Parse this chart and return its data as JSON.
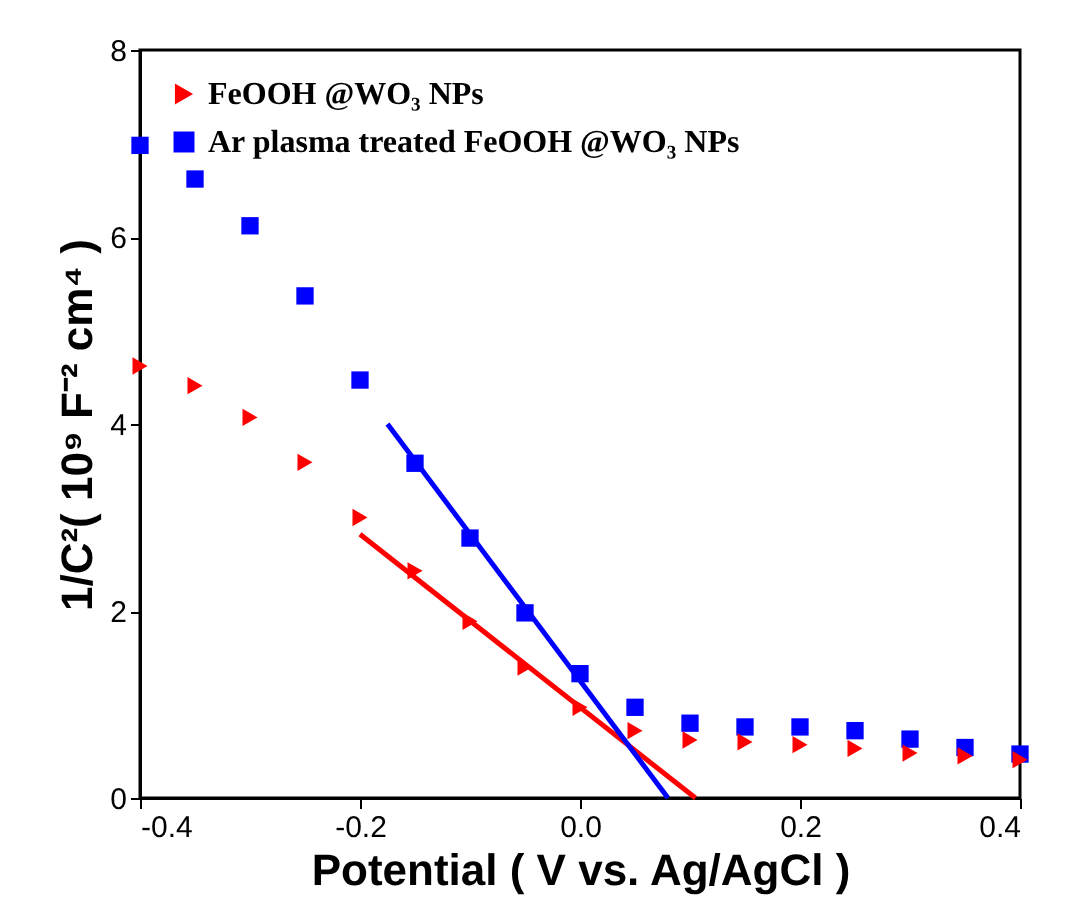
{
  "chart_data": {
    "type": "scatter",
    "xlabel": "Potential ( V vs. Ag/AgCl )",
    "ylabel": "1/C²( 10⁹ F⁻² cm⁴ )",
    "x": [
      -0.4,
      -0.35,
      -0.3,
      -0.25,
      -0.2,
      -0.15,
      -0.1,
      -0.05,
      0.0,
      0.05,
      0.1,
      0.15,
      0.2,
      0.25,
      0.3,
      0.35,
      0.4
    ],
    "series": [
      {
        "name": "FeOOH @WO₃ NPs",
        "marker": "triangle",
        "color": "#ff0000",
        "values": [
          4.62,
          4.41,
          4.07,
          3.59,
          3.0,
          2.43,
          1.89,
          1.4,
          0.97,
          0.72,
          0.62,
          0.6,
          0.57,
          0.53,
          0.48,
          0.45,
          0.41
        ]
      },
      {
        "name": "Ar plasma treated FeOOH @WO₃ NPs",
        "marker": "square",
        "color": "#0000ff",
        "values": [
          6.98,
          6.62,
          6.12,
          5.37,
          4.47,
          3.58,
          2.78,
          1.98,
          1.33,
          0.97,
          0.8,
          0.76,
          0.76,
          0.72,
          0.63,
          0.54,
          0.47
        ]
      },
      {
        "type": "line",
        "color": "#ff0000",
        "x": [
          -0.2,
          0.105
        ],
        "values": [
          2.82,
          0
        ]
      },
      {
        "type": "line",
        "color": "#0000ff",
        "x": [
          -0.175,
          0.08
        ],
        "values": [
          4.0,
          0
        ]
      }
    ],
    "xlim": [
      -0.4,
      0.4
    ],
    "xticks": [
      {
        "value": -0.4,
        "label": "-0.4"
      },
      {
        "value": -0.2,
        "label": "-0.2"
      },
      {
        "value": 0,
        "label": "0.0"
      },
      {
        "value": 0.2,
        "label": "0.2"
      },
      {
        "value": 0.4,
        "label": "0.4"
      }
    ],
    "ylim": [
      0,
      8
    ],
    "yticks": [
      0,
      2,
      4,
      6,
      8
    ],
    "grid": false,
    "legend": "top left"
  }
}
